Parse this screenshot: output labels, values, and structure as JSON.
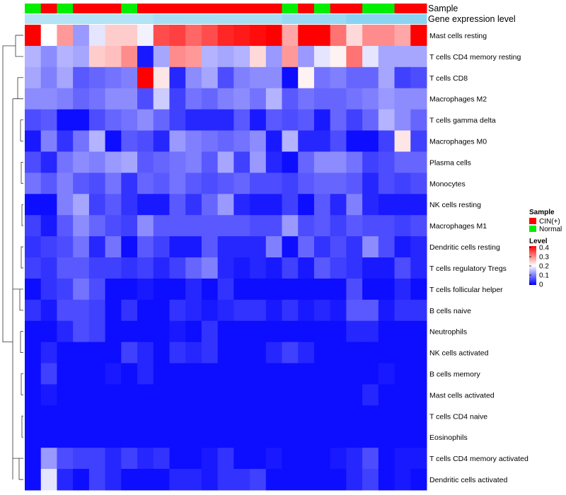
{
  "chart_data": {
    "type": "heatmap",
    "title": "",
    "annotation_tracks": [
      "Sample",
      "Gene expression level"
    ],
    "rows": [
      "Mast cells resting",
      "T cells CD4 memory resting",
      "T cells CD8",
      "Macrophages M2",
      "T cells gamma delta",
      "Macrophages M0",
      "Plasma cells",
      "Monocytes",
      "NK cells resting",
      "Macrophages M1",
      "Dendritic cells resting",
      "T cells regulatory  Tregs",
      "T cells follicular helper",
      "B cells naive",
      "Neutrophils",
      "NK cells activated",
      "B cells memory",
      "Mast cells activated",
      "T cells CD4 naive",
      "Eosinophils",
      "T cells CD4 memory activated",
      "Dendritic cells activated"
    ],
    "sample_groups": [
      "Normal",
      "CIN(+)",
      "Normal",
      "CIN(+)",
      "CIN(+)",
      "CIN(+)",
      "Normal",
      "CIN(+)",
      "CIN(+)",
      "CIN(+)",
      "CIN(+)",
      "CIN(+)",
      "CIN(+)",
      "CIN(+)",
      "CIN(+)",
      "CIN(+)",
      "Normal",
      "CIN(+)",
      "Normal",
      "CIN(+)",
      "CIN(+)",
      "Normal",
      "Normal",
      "CIN(+)",
      "CIN(+)"
    ],
    "expression_track": [
      0.3,
      0.3,
      0.3,
      0.3,
      0.3,
      0.3,
      0.3,
      0.3,
      0.4,
      0.4,
      0.4,
      0.4,
      0.4,
      0.4,
      0.4,
      0.4,
      0.5,
      0.5,
      0.5,
      0.5,
      0.6,
      0.6,
      0.6,
      0.6,
      0.6
    ],
    "values": [
      [
        0.4,
        0.2,
        0.28,
        0.12,
        0.18,
        0.24,
        0.24,
        0.19,
        0.34,
        0.35,
        0.32,
        0.34,
        0.37,
        0.38,
        0.39,
        0.4,
        0.27,
        0.4,
        0.4,
        0.31,
        0.23,
        0.29,
        0.29,
        0.27,
        0.4
      ],
      [
        0.14,
        0.11,
        0.14,
        0.13,
        0.24,
        0.25,
        0.29,
        0.02,
        0.13,
        0.29,
        0.28,
        0.14,
        0.13,
        0.14,
        0.23,
        0.12,
        0.28,
        0.12,
        0.18,
        0.21,
        0.31,
        0.18,
        0.13,
        0.13,
        0.13
      ],
      [
        0.13,
        0.1,
        0.13,
        0.07,
        0.08,
        0.09,
        0.1,
        0.4,
        0.22,
        0.03,
        0.11,
        0.13,
        0.06,
        0.1,
        0.11,
        0.11,
        0.01,
        0.21,
        0.09,
        0.1,
        0.08,
        0.08,
        0.13,
        0.05,
        0.06
      ],
      [
        0.11,
        0.11,
        0.1,
        0.08,
        0.09,
        0.11,
        0.11,
        0.06,
        0.16,
        0.05,
        0.09,
        0.08,
        0.1,
        0.11,
        0.09,
        0.14,
        0.07,
        0.09,
        0.08,
        0.08,
        0.09,
        0.1,
        0.12,
        0.11,
        0.11
      ],
      [
        0.06,
        0.07,
        0.01,
        0.01,
        0.06,
        0.08,
        0.09,
        0.11,
        0.08,
        0.05,
        0.03,
        0.03,
        0.03,
        0.07,
        0.02,
        0.07,
        0.06,
        0.07,
        0.02,
        0.08,
        0.05,
        0.08,
        0.14,
        0.11,
        0.08
      ],
      [
        0.02,
        0.1,
        0.04,
        0.09,
        0.14,
        0.01,
        0.07,
        0.06,
        0.03,
        0.12,
        0.1,
        0.09,
        0.08,
        0.09,
        0.11,
        0.02,
        0.14,
        0.03,
        0.03,
        0.06,
        0.01,
        0.01,
        0.05,
        0.22,
        0.05
      ],
      [
        0.06,
        0.03,
        0.09,
        0.11,
        0.1,
        0.12,
        0.13,
        0.07,
        0.08,
        0.09,
        0.1,
        0.07,
        0.13,
        0.05,
        0.12,
        0.03,
        0.01,
        0.08,
        0.11,
        0.11,
        0.09,
        0.05,
        0.06,
        0.08,
        0.08
      ],
      [
        0.09,
        0.07,
        0.1,
        0.07,
        0.06,
        0.09,
        0.04,
        0.08,
        0.07,
        0.09,
        0.07,
        0.06,
        0.07,
        0.08,
        0.06,
        0.06,
        0.05,
        0.07,
        0.08,
        0.08,
        0.07,
        0.03,
        0.06,
        0.05,
        0.06
      ],
      [
        0.01,
        0.01,
        0.1,
        0.13,
        0.05,
        0.07,
        0.04,
        0.02,
        0.02,
        0.07,
        0.04,
        0.08,
        0.12,
        0.03,
        0.02,
        0.02,
        0.05,
        0.01,
        0.07,
        0.03,
        0.1,
        0.03,
        0.02,
        0.02,
        0.02
      ],
      [
        0.05,
        0.02,
        0.07,
        0.11,
        0.08,
        0.06,
        0.05,
        0.11,
        0.07,
        0.07,
        0.07,
        0.07,
        0.07,
        0.07,
        0.06,
        0.06,
        0.12,
        0.06,
        0.07,
        0.05,
        0.07,
        0.06,
        0.06,
        0.05,
        0.06
      ],
      [
        0.04,
        0.05,
        0.06,
        0.09,
        0.03,
        0.09,
        0.01,
        0.07,
        0.05,
        0.02,
        0.02,
        0.07,
        0.03,
        0.03,
        0.03,
        0.1,
        0.01,
        0.08,
        0.04,
        0.06,
        0.04,
        0.11,
        0.06,
        0.02,
        0.03
      ],
      [
        0.05,
        0.04,
        0.07,
        0.07,
        0.05,
        0.05,
        0.04,
        0.05,
        0.03,
        0.05,
        0.08,
        0.1,
        0.03,
        0.02,
        0.03,
        0.02,
        0.05,
        0.02,
        0.07,
        0.05,
        0.04,
        0.02,
        0.02,
        0.06,
        0.03
      ],
      [
        0.01,
        0.04,
        0.05,
        0.09,
        0.06,
        0.01,
        0.01,
        0.02,
        0.01,
        0.01,
        0.03,
        0.01,
        0.04,
        0.01,
        0.01,
        0.01,
        0.01,
        0.01,
        0.01,
        0.01,
        0.06,
        0.01,
        0.01,
        0.03,
        0.01
      ],
      [
        0.04,
        0.02,
        0.06,
        0.06,
        0.05,
        0.01,
        0.04,
        0.01,
        0.01,
        0.04,
        0.03,
        0.02,
        0.03,
        0.04,
        0.04,
        0.02,
        0.04,
        0.02,
        0.03,
        0.02,
        0.07,
        0.07,
        0.02,
        0.04,
        0.04
      ],
      [
        0.01,
        0.01,
        0.03,
        0.06,
        0.05,
        0.01,
        0.01,
        0.01,
        0.01,
        0.02,
        0.01,
        0.04,
        0.01,
        0.01,
        0.01,
        0.01,
        0.01,
        0.01,
        0.01,
        0.01,
        0.03,
        0.03,
        0.01,
        0.01,
        0.01
      ],
      [
        0.01,
        0.03,
        0.01,
        0.01,
        0.01,
        0.01,
        0.05,
        0.03,
        0.01,
        0.04,
        0.03,
        0.04,
        0.01,
        0.01,
        0.01,
        0.03,
        0.05,
        0.03,
        0.01,
        0.01,
        0.01,
        0.01,
        0.01,
        0.01,
        0.01
      ],
      [
        0.01,
        0.05,
        0.01,
        0.01,
        0.01,
        0.02,
        0.01,
        0.03,
        0.01,
        0.01,
        0.01,
        0.01,
        0.01,
        0.01,
        0.01,
        0.01,
        0.01,
        0.01,
        0.01,
        0.01,
        0.01,
        0.01,
        0.02,
        0.01,
        0.01
      ],
      [
        0.01,
        0.02,
        0.01,
        0.01,
        0.01,
        0.01,
        0.01,
        0.01,
        0.01,
        0.01,
        0.01,
        0.01,
        0.01,
        0.01,
        0.01,
        0.01,
        0.01,
        0.01,
        0.01,
        0.01,
        0.01,
        0.03,
        0.01,
        0.01,
        0.01
      ],
      [
        0.01,
        0.01,
        0.01,
        0.01,
        0.01,
        0.01,
        0.01,
        0.01,
        0.01,
        0.01,
        0.01,
        0.01,
        0.01,
        0.01,
        0.01,
        0.01,
        0.01,
        0.01,
        0.01,
        0.01,
        0.01,
        0.01,
        0.01,
        0.01,
        0.01
      ],
      [
        0.01,
        0.01,
        0.01,
        0.01,
        0.01,
        0.01,
        0.01,
        0.01,
        0.01,
        0.01,
        0.01,
        0.01,
        0.01,
        0.01,
        0.01,
        0.01,
        0.01,
        0.01,
        0.01,
        0.01,
        0.01,
        0.01,
        0.01,
        0.01,
        0.01
      ],
      [
        0.01,
        0.12,
        0.06,
        0.05,
        0.05,
        0.03,
        0.05,
        0.03,
        0.04,
        0.01,
        0.01,
        0.02,
        0.04,
        0.01,
        0.01,
        0.02,
        0.01,
        0.01,
        0.01,
        0.02,
        0.03,
        0.06,
        0.01,
        0.02,
        0.02
      ],
      [
        0.01,
        0.18,
        0.03,
        0.01,
        0.05,
        0.03,
        0.01,
        0.01,
        0.01,
        0.03,
        0.03,
        0.02,
        0.04,
        0.04,
        0.05,
        0.01,
        0.01,
        0.01,
        0.01,
        0.01,
        0.03,
        0.05,
        0.01,
        0.02,
        0.01
      ]
    ],
    "legend": {
      "sample_title": "Sample",
      "sample_entries": [
        {
          "label": "CIN(+)",
          "color": "#ff0000"
        },
        {
          "label": "Normal",
          "color": "#00ee00"
        }
      ],
      "level_title": "Level",
      "level_ticks": [
        "0.4",
        "0.3",
        "0.2",
        "0.1",
        "0"
      ]
    },
    "color_scale": {
      "low": "#0000ff",
      "mid": "#ffffff",
      "high": "#ff0000",
      "min": 0,
      "max": 0.4
    },
    "expression_colors": {
      "low": "#ddf1fb",
      "high": "#55c1ea"
    }
  }
}
